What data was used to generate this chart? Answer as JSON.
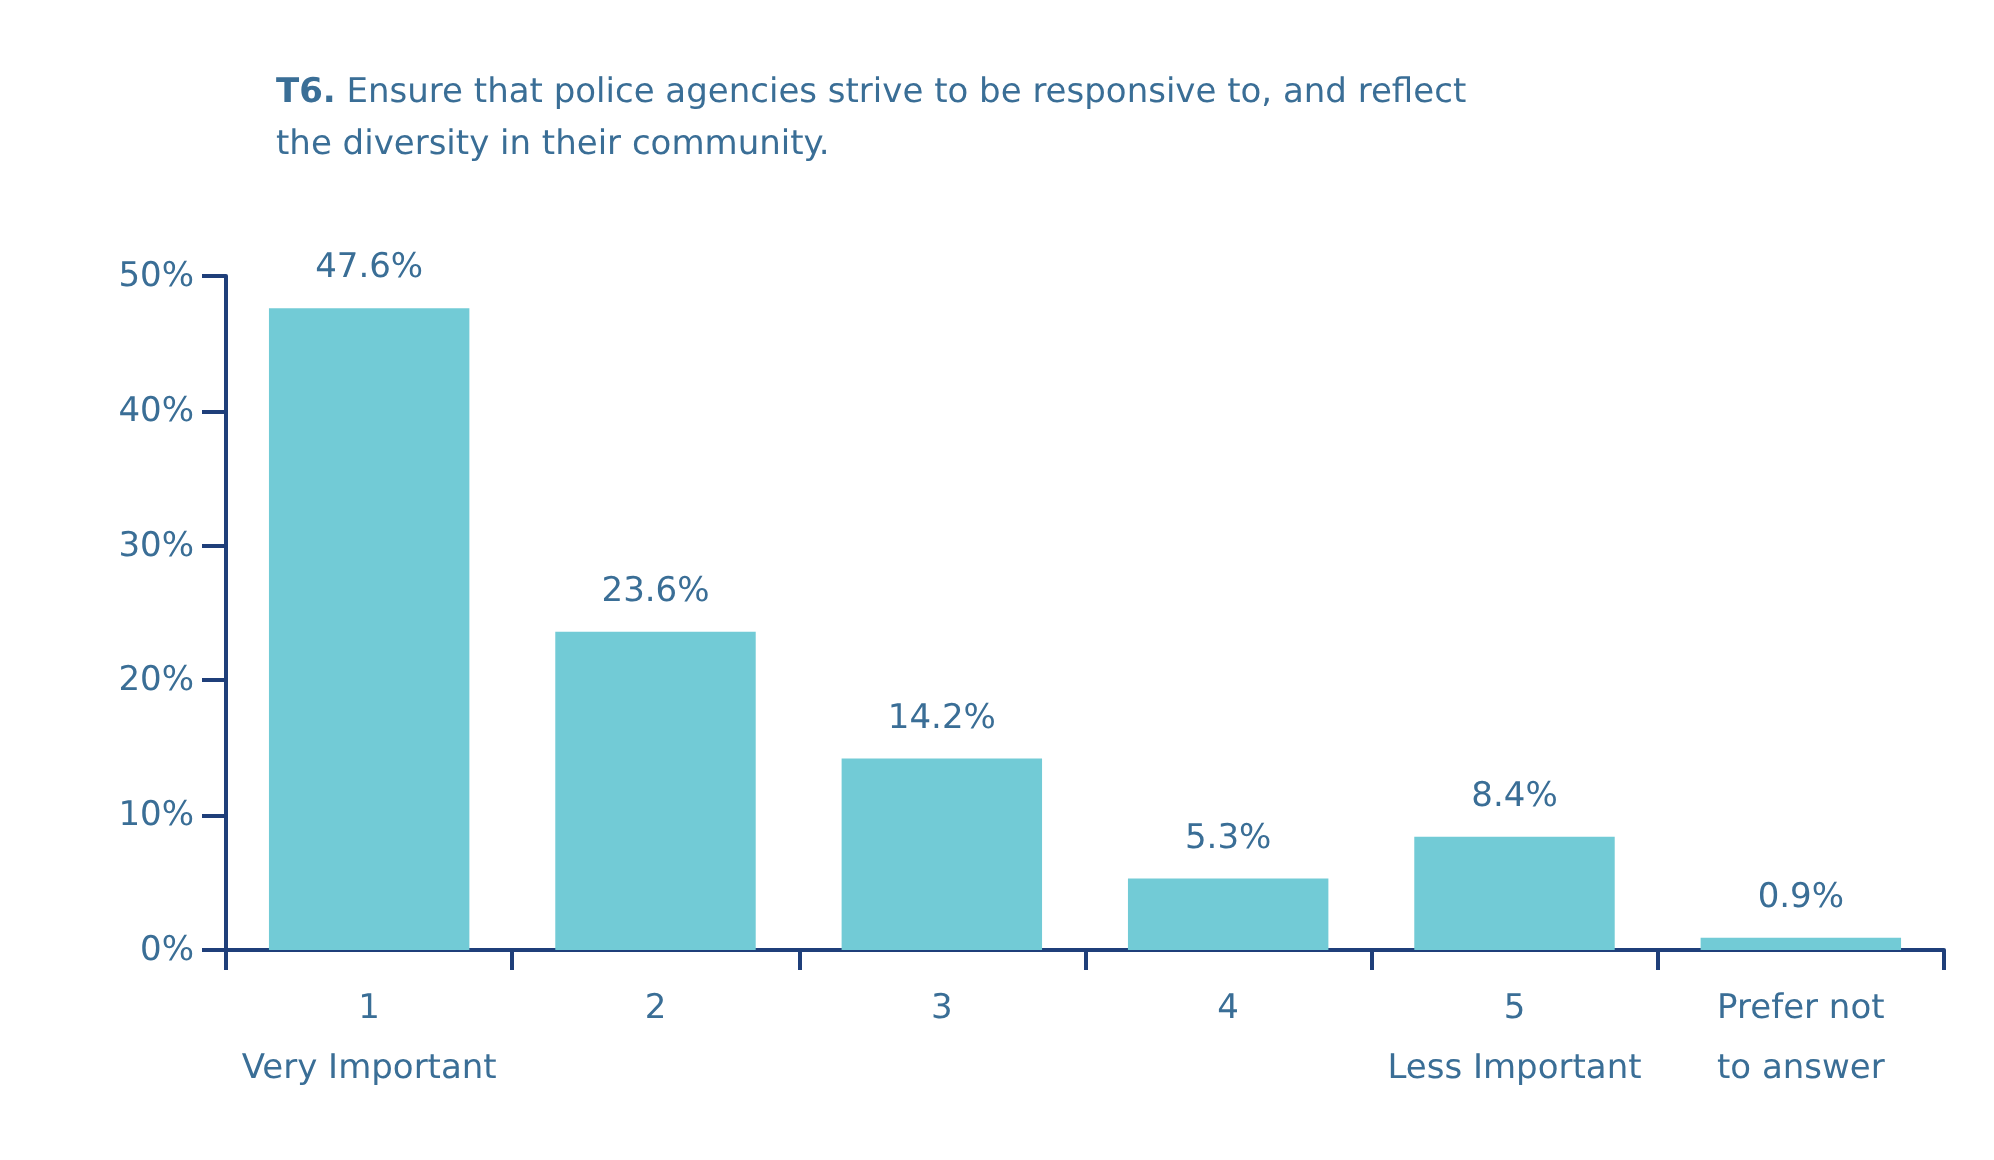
{
  "chart_data": {
    "type": "bar",
    "title": "T6. Ensure that police agencies strive to be responsive to, and reflect the diversity in their community.",
    "categories": [
      "1\nVery Important",
      "2",
      "3",
      "4",
      "5\nLess Important",
      "Prefer not\nto answer"
    ],
    "values": [
      47.6,
      23.6,
      14.2,
      5.3,
      8.4,
      0.9
    ],
    "value_labels": [
      "47.6%",
      "23.6%",
      "14.2%",
      "5.3%",
      "8.4%",
      "0.9%"
    ],
    "color": "#72cbd6",
    "ylim": [
      0,
      50
    ],
    "yticks": [
      {
        "value": 0,
        "label": "0%"
      },
      {
        "value": 10,
        "label": "10%"
      },
      {
        "value": 20,
        "label": "20%"
      },
      {
        "value": 30,
        "label": "30%"
      },
      {
        "value": 40,
        "label": "40%"
      },
      {
        "value": 50,
        "label": "50%"
      }
    ],
    "grid": false
  }
}
